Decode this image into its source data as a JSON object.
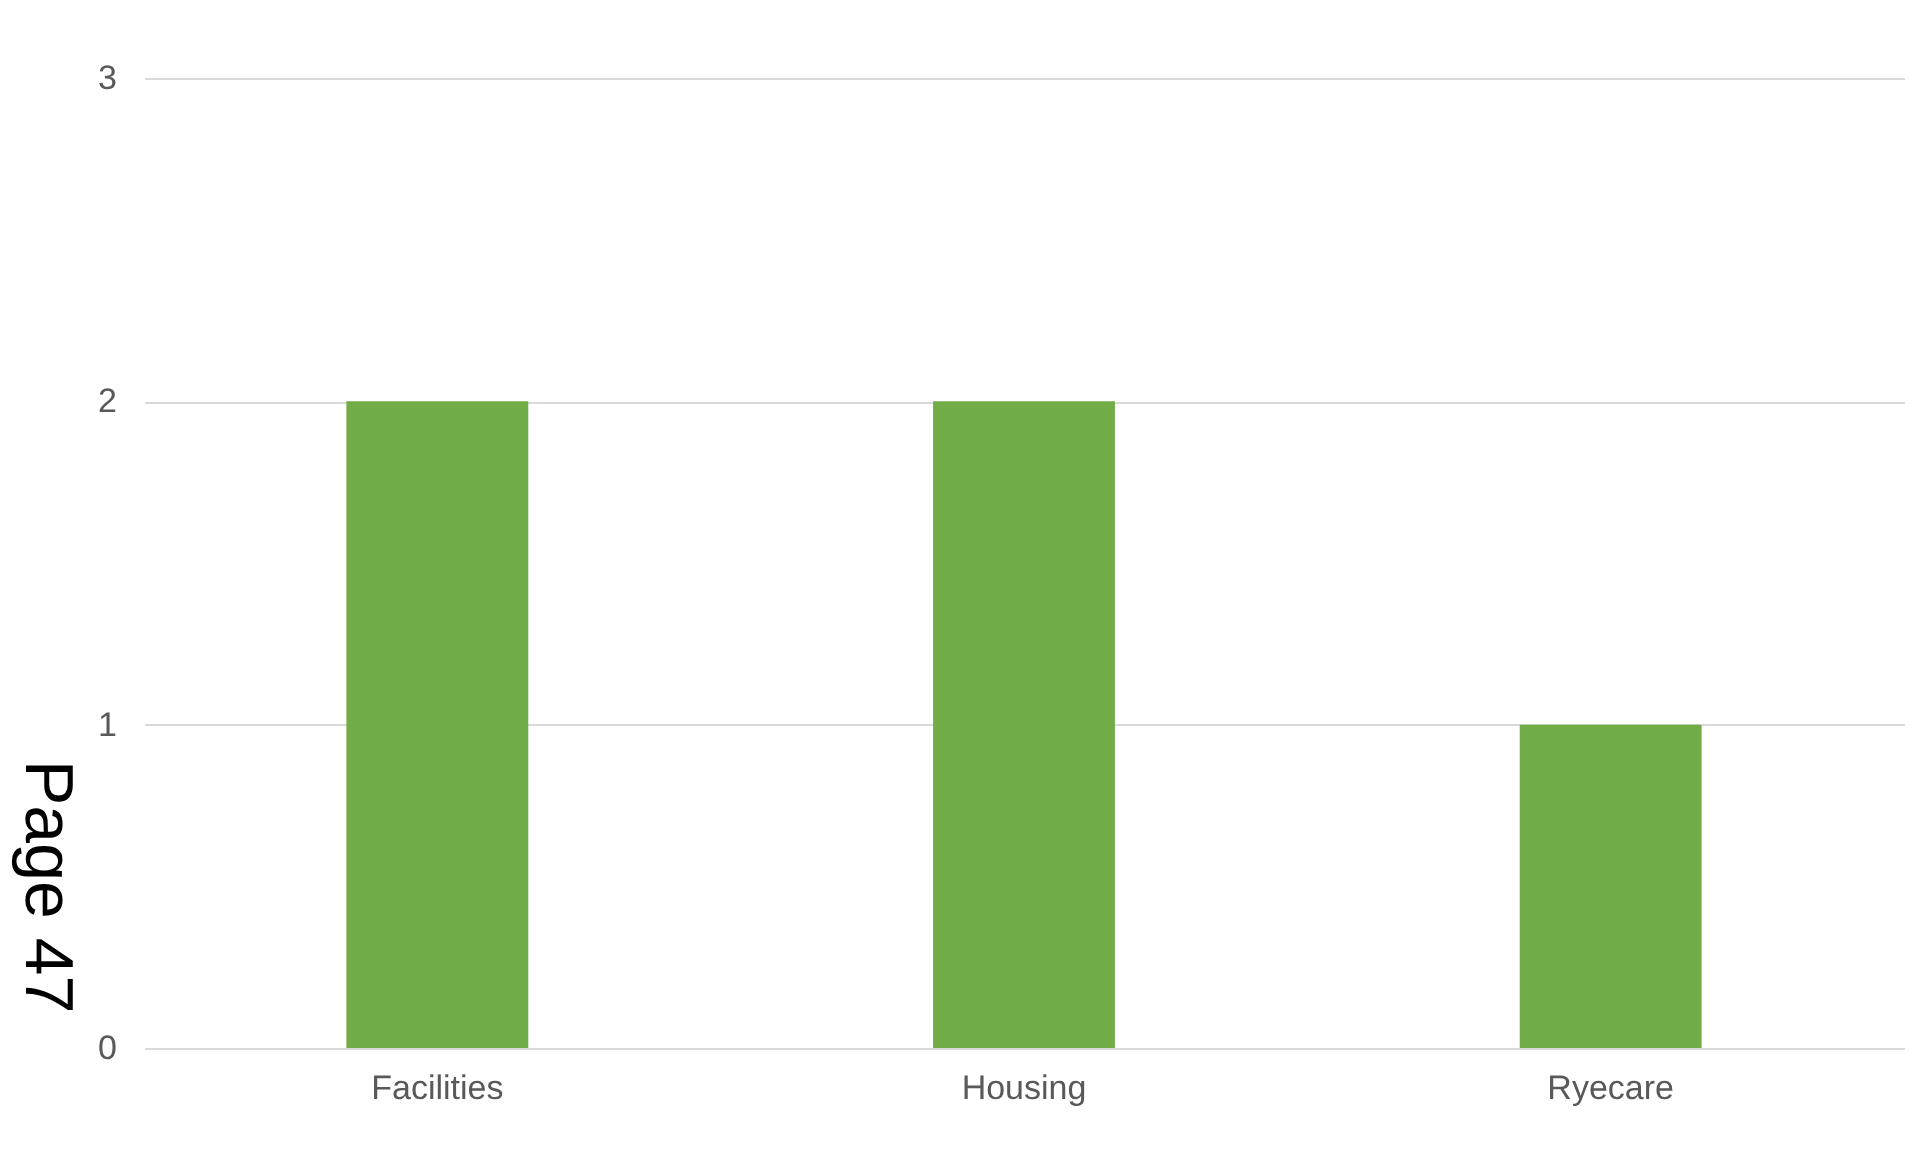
{
  "chart_data": {
    "type": "bar",
    "categories": [
      "Facilities",
      "Housing",
      "Ryecare"
    ],
    "values": [
      2,
      2,
      1
    ],
    "color": "#70ad47",
    "ylim": [
      0,
      3
    ],
    "yticks": [
      0,
      1,
      2,
      3
    ],
    "grid": "y",
    "annotations": [
      "Page 47"
    ]
  }
}
